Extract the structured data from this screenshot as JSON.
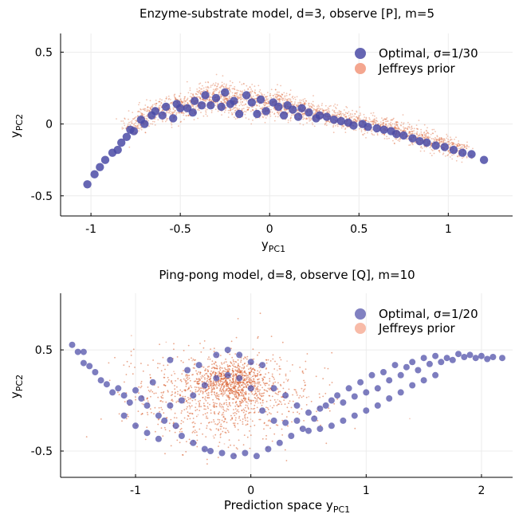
{
  "chart_data": [
    {
      "type": "scatter",
      "title": "Enzyme-substrate model, d=3, observe [P], m=5",
      "xlabel": "y",
      "xlabel_sub": "PC1",
      "ylabel": "y",
      "ylabel_sub": "PC2",
      "xlim": [
        -1.17,
        1.36
      ],
      "ylim": [
        -0.64,
        0.63
      ],
      "xticks": [
        -1,
        -0.5,
        0,
        0.5,
        1
      ],
      "xtick_labels": [
        "-1",
        "-0.5",
        "0",
        "0.5",
        "1"
      ],
      "yticks": [
        -0.5,
        0,
        0.5
      ],
      "ytick_labels": [
        "-0.5",
        "0",
        "0.5"
      ],
      "grid": true,
      "legend_position": "top-right",
      "colors": {
        "optimal": "#4b4ba6",
        "jeffreys": "#f4a68f",
        "cloud": "#d8521f"
      },
      "series": [
        {
          "name": "Optimal, σ=1/30",
          "points": [
            [
              -1.02,
              -0.42
            ],
            [
              -0.98,
              -0.35
            ],
            [
              -0.95,
              -0.3
            ],
            [
              -0.92,
              -0.25
            ],
            [
              -0.88,
              -0.2
            ],
            [
              -0.85,
              -0.18
            ],
            [
              -0.83,
              -0.13
            ],
            [
              -0.8,
              -0.09
            ],
            [
              -0.78,
              -0.04
            ],
            [
              -0.76,
              -0.05
            ],
            [
              -0.72,
              0.03
            ],
            [
              -0.7,
              0.0
            ],
            [
              -0.66,
              0.06
            ],
            [
              -0.64,
              0.09
            ],
            [
              -0.6,
              0.06
            ],
            [
              -0.58,
              0.12
            ],
            [
              -0.54,
              0.04
            ],
            [
              -0.52,
              0.14
            ],
            [
              -0.5,
              0.11
            ],
            [
              -0.46,
              0.11
            ],
            [
              -0.43,
              0.08
            ],
            [
              -0.42,
              0.16
            ],
            [
              -0.38,
              0.13
            ],
            [
              -0.36,
              0.2
            ],
            [
              -0.33,
              0.13
            ],
            [
              -0.3,
              0.18
            ],
            [
              -0.27,
              0.12
            ],
            [
              -0.25,
              0.22
            ],
            [
              -0.22,
              0.14
            ],
            [
              -0.2,
              0.16
            ],
            [
              -0.17,
              0.07
            ],
            [
              -0.13,
              0.2
            ],
            [
              -0.1,
              0.15
            ],
            [
              -0.07,
              0.07
            ],
            [
              -0.05,
              0.17
            ],
            [
              -0.02,
              0.09
            ],
            [
              0.02,
              0.15
            ],
            [
              0.05,
              0.12
            ],
            [
              0.08,
              0.06
            ],
            [
              0.1,
              0.13
            ],
            [
              0.13,
              0.1
            ],
            [
              0.16,
              0.05
            ],
            [
              0.18,
              0.11
            ],
            [
              0.22,
              0.08
            ],
            [
              0.26,
              0.04
            ],
            [
              0.28,
              0.06
            ],
            [
              0.32,
              0.05
            ],
            [
              0.36,
              0.03
            ],
            [
              0.4,
              0.02
            ],
            [
              0.44,
              0.01
            ],
            [
              0.47,
              -0.01
            ],
            [
              0.52,
              0.0
            ],
            [
              0.55,
              -0.02
            ],
            [
              0.6,
              -0.03
            ],
            [
              0.64,
              -0.04
            ],
            [
              0.68,
              -0.05
            ],
            [
              0.71,
              -0.07
            ],
            [
              0.75,
              -0.08
            ],
            [
              0.8,
              -0.1
            ],
            [
              0.84,
              -0.12
            ],
            [
              0.88,
              -0.13
            ],
            [
              0.93,
              -0.15
            ],
            [
              0.98,
              -0.16
            ],
            [
              1.03,
              -0.18
            ],
            [
              1.08,
              -0.2
            ],
            [
              1.13,
              -0.21
            ],
            [
              1.2,
              -0.25
            ]
          ]
        },
        {
          "name": "Jeffreys prior"
        }
      ]
    },
    {
      "type": "scatter",
      "title": "Ping-pong model, d=8, observe [Q], m=10",
      "xlabel": "Prediction space y",
      "xlabel_sub": "PC1",
      "ylabel": "y",
      "ylabel_sub": "PC2",
      "xlim": [
        -1.65,
        2.27
      ],
      "ylim": [
        -0.76,
        1.06
      ],
      "xticks": [
        -1,
        0,
        1,
        2
      ],
      "xtick_labels": [
        "-1",
        "0",
        "1",
        "2"
      ],
      "yticks": [
        -0.5,
        0.5
      ],
      "ytick_labels": [
        "-0.5",
        "0.5"
      ],
      "grid": true,
      "legend_position": "top-right",
      "colors": {
        "optimal": "#4b4ba6",
        "jeffreys": "#f8bba8",
        "cloud": "#d8521f"
      },
      "series": [
        {
          "name": "Optimal, σ=1/20",
          "points": [
            [
              -1.55,
              0.55
            ],
            [
              -1.5,
              0.48
            ],
            [
              -1.45,
              0.48
            ],
            [
              -1.45,
              0.37
            ],
            [
              -1.4,
              0.34
            ],
            [
              -1.35,
              0.28
            ],
            [
              -1.3,
              0.2
            ],
            [
              -1.25,
              0.16
            ],
            [
              -1.2,
              0.08
            ],
            [
              -1.15,
              0.12
            ],
            [
              -1.1,
              0.05
            ],
            [
              -1.05,
              -0.02
            ],
            [
              -1.0,
              0.1
            ],
            [
              -0.95,
              0.02
            ],
            [
              -0.9,
              -0.05
            ],
            [
              -0.85,
              0.18
            ],
            [
              -0.8,
              -0.15
            ],
            [
              -0.75,
              -0.2
            ],
            [
              -0.7,
              0.4
            ],
            [
              -0.65,
              -0.25
            ],
            [
              -0.6,
              -0.35
            ],
            [
              -0.55,
              0.3
            ],
            [
              -0.5,
              -0.42
            ],
            [
              -0.45,
              0.35
            ],
            [
              -0.4,
              -0.48
            ],
            [
              -0.35,
              -0.5
            ],
            [
              -0.3,
              0.45
            ],
            [
              -0.25,
              -0.52
            ],
            [
              -0.2,
              0.5
            ],
            [
              -0.15,
              -0.55
            ],
            [
              -0.1,
              0.45
            ],
            [
              -0.05,
              -0.52
            ],
            [
              0.0,
              0.38
            ],
            [
              0.05,
              -0.55
            ],
            [
              0.1,
              0.35
            ],
            [
              0.15,
              -0.48
            ],
            [
              0.2,
              0.12
            ],
            [
              0.25,
              -0.42
            ],
            [
              0.3,
              0.05
            ],
            [
              0.35,
              -0.35
            ],
            [
              0.4,
              -0.05
            ],
            [
              0.45,
              -0.28
            ],
            [
              0.5,
              -0.12
            ],
            [
              0.55,
              -0.18
            ],
            [
              0.6,
              -0.08
            ],
            [
              0.65,
              -0.05
            ],
            [
              0.7,
              0.0
            ],
            [
              0.75,
              0.05
            ],
            [
              0.8,
              -0.02
            ],
            [
              0.85,
              0.12
            ],
            [
              0.9,
              0.04
            ],
            [
              0.95,
              0.18
            ],
            [
              1.0,
              0.08
            ],
            [
              1.05,
              0.25
            ],
            [
              1.1,
              0.12
            ],
            [
              1.15,
              0.28
            ],
            [
              1.2,
              0.2
            ],
            [
              1.25,
              0.35
            ],
            [
              1.3,
              0.25
            ],
            [
              1.35,
              0.33
            ],
            [
              1.4,
              0.38
            ],
            [
              1.45,
              0.3
            ],
            [
              1.5,
              0.42
            ],
            [
              1.55,
              0.36
            ],
            [
              1.6,
              0.44
            ],
            [
              1.65,
              0.38
            ],
            [
              1.7,
              0.42
            ],
            [
              1.75,
              0.4
            ],
            [
              1.8,
              0.46
            ],
            [
              1.85,
              0.43
            ],
            [
              1.9,
              0.45
            ],
            [
              1.95,
              0.42
            ],
            [
              2.0,
              0.44
            ],
            [
              2.05,
              0.41
            ],
            [
              2.1,
              0.43
            ],
            [
              2.18,
              0.42
            ],
            [
              -1.1,
              -0.15
            ],
            [
              -1.0,
              -0.25
            ],
            [
              -0.9,
              -0.32
            ],
            [
              -0.8,
              -0.38
            ],
            [
              -0.7,
              -0.05
            ],
            [
              -0.6,
              0.0
            ],
            [
              -0.5,
              0.05
            ],
            [
              -0.4,
              0.15
            ],
            [
              -0.3,
              0.22
            ],
            [
              -0.2,
              0.25
            ],
            [
              -0.1,
              0.22
            ],
            [
              0.0,
              0.12
            ],
            [
              0.1,
              -0.1
            ],
            [
              0.2,
              -0.2
            ],
            [
              0.3,
              -0.22
            ],
            [
              0.4,
              -0.2
            ],
            [
              0.5,
              -0.3
            ],
            [
              0.6,
              -0.28
            ],
            [
              0.7,
              -0.25
            ],
            [
              0.8,
              -0.2
            ],
            [
              0.9,
              -0.15
            ],
            [
              1.0,
              -0.1
            ],
            [
              1.1,
              -0.05
            ],
            [
              1.2,
              0.02
            ],
            [
              1.3,
              0.08
            ],
            [
              1.4,
              0.15
            ],
            [
              1.5,
              0.2
            ],
            [
              1.6,
              0.25
            ]
          ]
        },
        {
          "name": "Jeffreys prior"
        }
      ]
    }
  ]
}
